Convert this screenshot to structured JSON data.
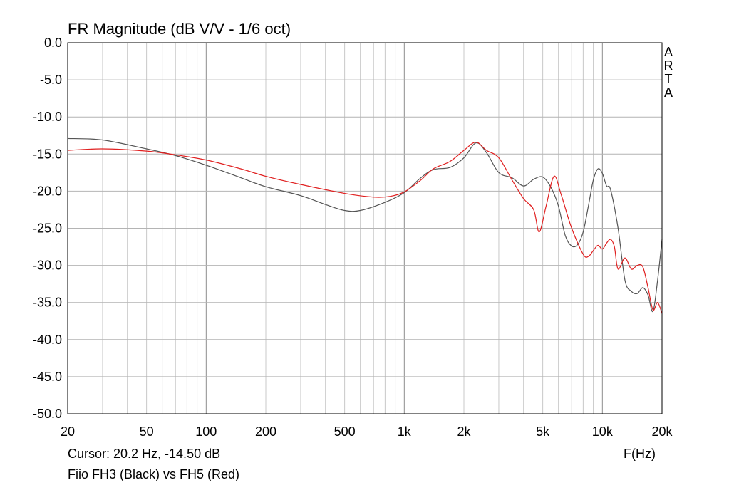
{
  "chart_data": {
    "type": "line",
    "title": "FR Magnitude (dB V/V - 1/6 oct)",
    "xlabel": "F(Hz)",
    "x_scale": "log",
    "xlim": [
      20,
      20000
    ],
    "ylim": [
      -50,
      0
    ],
    "y_ticks": [
      0,
      -5,
      -10,
      -15,
      -20,
      -25,
      -30,
      -35,
      -40,
      -45,
      -50
    ],
    "y_tick_labels": [
      "0.0",
      "-5.0",
      "-10.0",
      "-15.0",
      "-20.0",
      "-25.0",
      "-30.0",
      "-35.0",
      "-40.0",
      "-45.0",
      "-50.0"
    ],
    "x_ticks": [
      20,
      50,
      100,
      200,
      500,
      1000,
      2000,
      5000,
      10000,
      20000
    ],
    "x_tick_labels": [
      "20",
      "50",
      "100",
      "200",
      "500",
      "1k",
      "2k",
      "5k",
      "10k",
      "20k"
    ],
    "grid": true,
    "cursor_text": "Cursor: 20.2 Hz, -14.50 dB",
    "caption": "Fiio FH3 (Black) vs FH5 (Red)",
    "watermark": [
      "A",
      "R",
      "T",
      "A"
    ],
    "series": [
      {
        "color": "#555555",
        "points": [
          [
            20,
            -12.9
          ],
          [
            30,
            -13.1
          ],
          [
            50,
            -14.3
          ],
          [
            70,
            -15.2
          ],
          [
            100,
            -16.5
          ],
          [
            150,
            -18.2
          ],
          [
            200,
            -19.4
          ],
          [
            300,
            -20.6
          ],
          [
            400,
            -21.8
          ],
          [
            500,
            -22.6
          ],
          [
            600,
            -22.6
          ],
          [
            800,
            -21.5
          ],
          [
            1000,
            -20.2
          ],
          [
            1200,
            -18.3
          ],
          [
            1400,
            -17.1
          ],
          [
            1700,
            -16.8
          ],
          [
            2000,
            -15.5
          ],
          [
            2300,
            -13.5
          ],
          [
            2600,
            -14.8
          ],
          [
            3000,
            -17.5
          ],
          [
            3500,
            -18.2
          ],
          [
            4000,
            -19.3
          ],
          [
            4500,
            -18.4
          ],
          [
            5000,
            -18.1
          ],
          [
            5500,
            -19.5
          ],
          [
            6000,
            -22.0
          ],
          [
            6500,
            -26.0
          ],
          [
            7000,
            -27.4
          ],
          [
            7500,
            -27.2
          ],
          [
            8000,
            -25.5
          ],
          [
            8500,
            -22.0
          ],
          [
            9000,
            -18.5
          ],
          [
            9500,
            -17.0
          ],
          [
            10000,
            -17.6
          ],
          [
            10500,
            -19.3
          ],
          [
            11000,
            -19.8
          ],
          [
            12000,
            -25.0
          ],
          [
            13000,
            -32.0
          ],
          [
            14000,
            -33.5
          ],
          [
            15000,
            -33.8
          ],
          [
            16000,
            -33.0
          ],
          [
            17000,
            -34.0
          ],
          [
            18000,
            -36.2
          ],
          [
            19000,
            -32.0
          ],
          [
            20000,
            -26.5
          ]
        ]
      },
      {
        "color": "#e02020",
        "points": [
          [
            20,
            -14.5
          ],
          [
            30,
            -14.3
          ],
          [
            50,
            -14.6
          ],
          [
            70,
            -15.1
          ],
          [
            100,
            -15.8
          ],
          [
            150,
            -17.0
          ],
          [
            200,
            -18.0
          ],
          [
            300,
            -19.1
          ],
          [
            500,
            -20.3
          ],
          [
            700,
            -20.8
          ],
          [
            850,
            -20.7
          ],
          [
            1000,
            -20.1
          ],
          [
            1200,
            -18.6
          ],
          [
            1400,
            -17.0
          ],
          [
            1700,
            -16.0
          ],
          [
            2000,
            -14.5
          ],
          [
            2300,
            -13.4
          ],
          [
            2600,
            -14.5
          ],
          [
            3000,
            -15.5
          ],
          [
            3500,
            -18.5
          ],
          [
            4000,
            -21.0
          ],
          [
            4500,
            -22.5
          ],
          [
            4800,
            -25.5
          ],
          [
            5200,
            -22.0
          ],
          [
            5700,
            -18.0
          ],
          [
            6200,
            -20.5
          ],
          [
            7000,
            -25.0
          ],
          [
            8000,
            -28.5
          ],
          [
            8500,
            -28.8
          ],
          [
            9000,
            -28.0
          ],
          [
            9500,
            -27.3
          ],
          [
            10000,
            -27.8
          ],
          [
            10500,
            -27.0
          ],
          [
            11000,
            -26.5
          ],
          [
            11500,
            -27.5
          ],
          [
            12000,
            -30.5
          ],
          [
            13000,
            -29.0
          ],
          [
            14000,
            -30.5
          ],
          [
            15000,
            -30.0
          ],
          [
            16000,
            -30.2
          ],
          [
            17000,
            -33.0
          ],
          [
            18000,
            -36.0
          ],
          [
            19000,
            -35.0
          ],
          [
            20000,
            -36.5
          ]
        ]
      }
    ]
  }
}
